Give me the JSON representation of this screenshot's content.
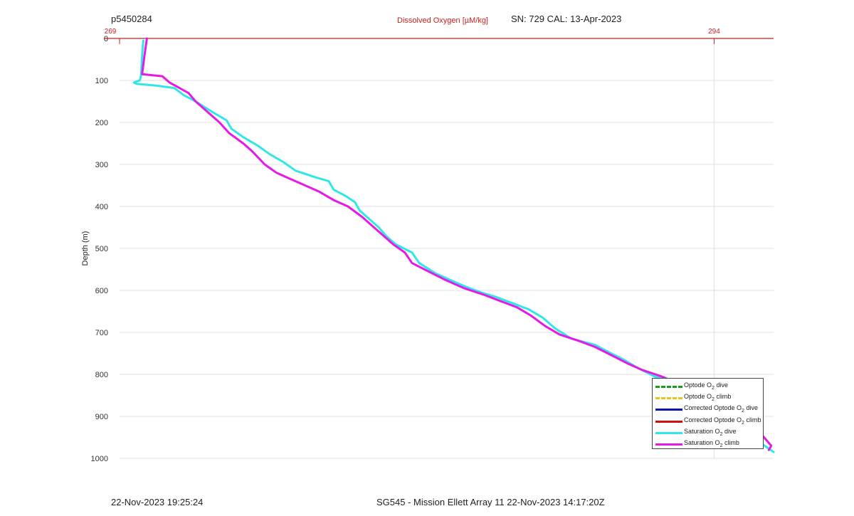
{
  "header": {
    "profile_id": "p5450284",
    "sensor_info": "SN: 729  CAL: 13-Apr-2023"
  },
  "footer": {
    "timestamp": "22-Nov-2023 19:25:24",
    "mission": "SG545 - Mission Ellett Array 11 22-Nov-2023 14:17:20Z"
  },
  "chart_data": {
    "type": "line",
    "xlabel": "Dissolved Oxygen [µM/kg]",
    "ylabel": "Depth (m)",
    "xlim": [
      269,
      296.5
    ],
    "ylim": [
      1000,
      0
    ],
    "x_ticks": [
      "269",
      "294"
    ],
    "y_ticks": [
      "0",
      "100",
      "200",
      "300",
      "400",
      "500",
      "600",
      "700",
      "800",
      "900",
      "1000"
    ],
    "grid": true,
    "legend_position": "bottom-right",
    "legend": [
      {
        "label": "Optode O",
        "sub": "2",
        "suffix": " dive",
        "color": "#1a9e1a",
        "style": "dashed"
      },
      {
        "label": "Optode O",
        "sub": "2",
        "suffix": " climb",
        "color": "#e6c619",
        "style": "dashed"
      },
      {
        "label": "Corrected Optode O",
        "sub": "2",
        "suffix": " dive",
        "color": "#1010b0",
        "style": "solid"
      },
      {
        "label": "Corrected Optode O",
        "sub": "2",
        "suffix": " climb",
        "color": "#cc1111",
        "style": "solid"
      },
      {
        "label": "Saturation O",
        "sub": "2",
        "suffix": " dive",
        "color": "#33e6e6",
        "style": "solid"
      },
      {
        "label": "Saturation O",
        "sub": "2",
        "suffix": " climb",
        "color": "#e61ae6",
        "style": "solid"
      }
    ],
    "series": [
      {
        "name": "Saturation O2 dive",
        "color": "#33e6e6",
        "points": [
          [
            270.0,
            5
          ],
          [
            269.95,
            40
          ],
          [
            269.9,
            90
          ],
          [
            269.85,
            100
          ],
          [
            269.6,
            105
          ],
          [
            269.7,
            108
          ],
          [
            270.5,
            112
          ],
          [
            271.3,
            118
          ],
          [
            271.7,
            135
          ],
          [
            272.2,
            150
          ],
          [
            272.9,
            175
          ],
          [
            273.5,
            195
          ],
          [
            273.7,
            215
          ],
          [
            274.2,
            235
          ],
          [
            274.8,
            255
          ],
          [
            275.3,
            275
          ],
          [
            275.9,
            295
          ],
          [
            276.4,
            315
          ],
          [
            277.2,
            330
          ],
          [
            277.8,
            340
          ],
          [
            278.0,
            360
          ],
          [
            278.5,
            375
          ],
          [
            278.9,
            390
          ],
          [
            279.1,
            410
          ],
          [
            279.5,
            430
          ],
          [
            279.9,
            450
          ],
          [
            280.2,
            470
          ],
          [
            280.6,
            490
          ],
          [
            281.3,
            510
          ],
          [
            281.6,
            535
          ],
          [
            282.3,
            560
          ],
          [
            282.9,
            575
          ],
          [
            283.5,
            590
          ],
          [
            284.2,
            605
          ],
          [
            284.8,
            615
          ],
          [
            285.5,
            630
          ],
          [
            286.2,
            645
          ],
          [
            286.8,
            665
          ],
          [
            287.3,
            690
          ],
          [
            288.0,
            715
          ],
          [
            289.0,
            730
          ],
          [
            289.6,
            748
          ],
          [
            290.2,
            765
          ],
          [
            290.8,
            785
          ],
          [
            291.5,
            805
          ],
          [
            292.5,
            820
          ],
          [
            293.3,
            835
          ],
          [
            293.7,
            850
          ],
          [
            294.0,
            865
          ],
          [
            294.6,
            875
          ],
          [
            294.9,
            890
          ],
          [
            295.6,
            915
          ],
          [
            295.5,
            925
          ],
          [
            295.1,
            935
          ],
          [
            295.8,
            950
          ],
          [
            296.0,
            965
          ],
          [
            296.5,
            985
          ]
        ]
      },
      {
        "name": "Saturation O2 climb",
        "color": "#e61ae6",
        "points": [
          [
            270.15,
            0
          ],
          [
            270.05,
            40
          ],
          [
            269.95,
            85
          ],
          [
            270.8,
            90
          ],
          [
            271.1,
            105
          ],
          [
            271.9,
            130
          ],
          [
            272.2,
            150
          ],
          [
            272.7,
            175
          ],
          [
            273.2,
            200
          ],
          [
            273.6,
            225
          ],
          [
            274.2,
            250
          ],
          [
            274.6,
            270
          ],
          [
            275.1,
            300
          ],
          [
            275.6,
            320
          ],
          [
            276.2,
            335
          ],
          [
            276.8,
            350
          ],
          [
            277.4,
            365
          ],
          [
            278.0,
            385
          ],
          [
            278.6,
            400
          ],
          [
            279.2,
            425
          ],
          [
            279.6,
            445
          ],
          [
            280.1,
            470
          ],
          [
            280.5,
            490
          ],
          [
            281.0,
            510
          ],
          [
            281.3,
            535
          ],
          [
            282.0,
            555
          ],
          [
            282.7,
            575
          ],
          [
            283.5,
            595
          ],
          [
            284.3,
            610
          ],
          [
            285.0,
            625
          ],
          [
            285.7,
            640
          ],
          [
            286.3,
            660
          ],
          [
            286.9,
            685
          ],
          [
            287.5,
            705
          ],
          [
            288.3,
            720
          ],
          [
            289.0,
            735
          ],
          [
            289.7,
            755
          ],
          [
            290.4,
            775
          ],
          [
            291.0,
            790
          ],
          [
            291.8,
            805
          ],
          [
            292.6,
            825
          ],
          [
            293.2,
            845
          ],
          [
            293.8,
            865
          ],
          [
            294.2,
            880
          ],
          [
            294.9,
            890
          ],
          [
            295.4,
            910
          ],
          [
            295.8,
            930
          ],
          [
            296.1,
            950
          ],
          [
            296.4,
            970
          ],
          [
            296.3,
            980
          ]
        ]
      }
    ]
  }
}
